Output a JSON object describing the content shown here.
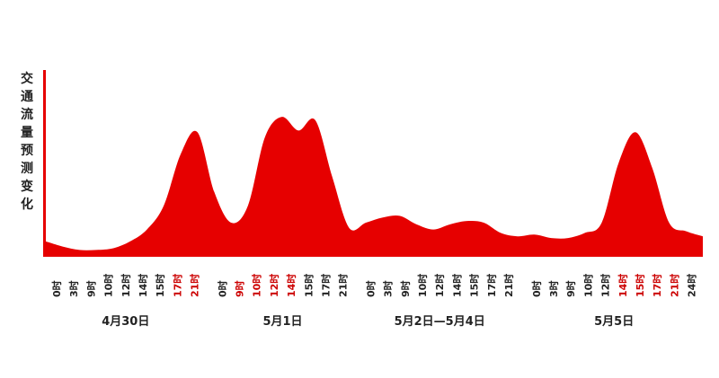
{
  "chart_data": {
    "type": "area",
    "title": "",
    "ylabel": "交通流量预测变化",
    "xlabel": "",
    "grid": false,
    "legend": "none",
    "y_unit": "relative (0–100)",
    "ylim": [
      0,
      100
    ],
    "fill_color": "#e60000",
    "tick_color_normal": "#222222",
    "tick_color_highlight": "#cc0000",
    "groups": [
      {
        "label": "4月30日",
        "ticks": [
          {
            "label": "0时",
            "highlight": false
          },
          {
            "label": "3时",
            "highlight": false
          },
          {
            "label": "9时",
            "highlight": false
          },
          {
            "label": "10时",
            "highlight": false
          },
          {
            "label": "12时",
            "highlight": false
          },
          {
            "label": "14时",
            "highlight": false
          },
          {
            "label": "15时",
            "highlight": false
          },
          {
            "label": "17时",
            "highlight": true
          },
          {
            "label": "21时",
            "highlight": true
          }
        ]
      },
      {
        "label": "5月1日",
        "ticks": [
          {
            "label": "0时",
            "highlight": false
          },
          {
            "label": "9时",
            "highlight": true
          },
          {
            "label": "10时",
            "highlight": true
          },
          {
            "label": "12时",
            "highlight": true
          },
          {
            "label": "14时",
            "highlight": true
          },
          {
            "label": "15时",
            "highlight": false
          },
          {
            "label": "17时",
            "highlight": false
          },
          {
            "label": "21时",
            "highlight": false
          }
        ]
      },
      {
        "label": "5月2日—5月4日",
        "ticks": [
          {
            "label": "0时",
            "highlight": false
          },
          {
            "label": "3时",
            "highlight": false
          },
          {
            "label": "9时",
            "highlight": false
          },
          {
            "label": "10时",
            "highlight": false
          },
          {
            "label": "12时",
            "highlight": false
          },
          {
            "label": "14时",
            "highlight": false
          },
          {
            "label": "15时",
            "highlight": false
          },
          {
            "label": "17时",
            "highlight": false
          },
          {
            "label": "21时",
            "highlight": false
          }
        ]
      },
      {
        "label": "5月5日",
        "ticks": [
          {
            "label": "0时",
            "highlight": false
          },
          {
            "label": "3时",
            "highlight": false
          },
          {
            "label": "9时",
            "highlight": false
          },
          {
            "label": "10时",
            "highlight": false
          },
          {
            "label": "12时",
            "highlight": false
          },
          {
            "label": "14时",
            "highlight": true
          },
          {
            "label": "15时",
            "highlight": true
          },
          {
            "label": "17时",
            "highlight": true
          },
          {
            "label": "21时",
            "highlight": true
          },
          {
            "label": "24时",
            "highlight": false
          }
        ]
      }
    ],
    "series": [
      {
        "values": [
          9,
          6,
          4,
          4,
          5,
          9,
          16,
          30,
          60,
          73,
          38,
          20,
          30,
          70,
          82,
          74,
          80,
          47,
          17,
          20,
          23,
          24,
          19,
          16,
          19,
          21,
          20,
          14,
          12,
          13,
          11,
          11,
          14,
          20,
          55,
          73,
          52,
          20,
          15,
          12
        ]
      }
    ]
  }
}
